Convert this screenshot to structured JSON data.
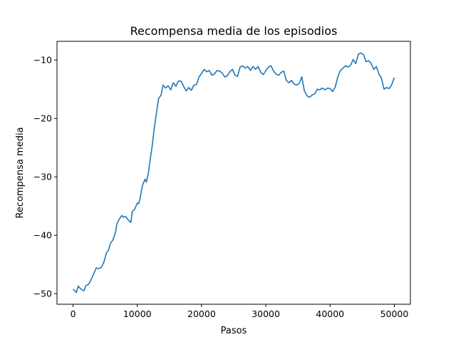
{
  "chart_data": {
    "type": "line",
    "title": "Recompensa media de los episodios",
    "xlabel": "Pasos",
    "ylabel": "Recompensa media",
    "xlim": [
      -2500,
      52500
    ],
    "ylim": [
      -51.8,
      -6.8
    ],
    "xticks": [
      0,
      10000,
      20000,
      30000,
      40000,
      50000
    ],
    "yticks": [
      -50,
      -40,
      -30,
      -20,
      -10
    ],
    "xtick_labels": [
      "0",
      "10000",
      "20000",
      "30000",
      "40000",
      "50000"
    ],
    "ytick_labels": [
      "−50",
      "−40",
      "−30",
      "−20",
      "−10"
    ],
    "grid": false,
    "color": "#1f77b4",
    "series": [
      {
        "x": [
          0,
          500,
          800,
          1200,
          1700,
          2000,
          2400,
          2800,
          3200,
          3600,
          4000,
          4400,
          4800,
          5200,
          5500,
          5800,
          6200,
          6600,
          6800,
          7200,
          7600,
          7800,
          8200,
          8600,
          9000,
          9200,
          9600,
          10000,
          10200,
          10400,
          10800,
          11200,
          11400,
          11700,
          12000,
          12300,
          12600,
          12900,
          13300,
          13700,
          14000,
          14400,
          14800,
          15200,
          15600,
          16000,
          16400,
          16800,
          17200,
          17600,
          18000,
          18400,
          18800,
          19200,
          19600,
          20000,
          20400,
          20800,
          21200,
          21600,
          22000,
          22400,
          22800,
          23200,
          23600,
          24000,
          24400,
          24800,
          25200,
          25600,
          26000,
          26400,
          26800,
          27200,
          27600,
          28000,
          28400,
          28800,
          29200,
          29600,
          30000,
          30400,
          30800,
          31200,
          31600,
          32000,
          32400,
          32800,
          33200,
          33600,
          34000,
          34400,
          34800,
          35200,
          35600,
          36000,
          36400,
          36800,
          37200,
          37600,
          38000,
          38400,
          38800,
          39200,
          39600,
          40000,
          40400,
          40800,
          41200,
          41600,
          42000,
          42400,
          42800,
          43200,
          43600,
          44000,
          44400,
          44800,
          45200,
          45600,
          46000,
          46400,
          46800,
          47200,
          47600,
          48000,
          48400,
          48800,
          49200,
          49600,
          50000
        ],
        "y": [
          -49.2,
          -49.8,
          -48.7,
          -49.2,
          -49.5,
          -48.6,
          -48.4,
          -47.6,
          -46.6,
          -45.6,
          -45.7,
          -45.5,
          -44.6,
          -43.0,
          -42.6,
          -41.4,
          -40.8,
          -39.5,
          -38.1,
          -37.2,
          -36.6,
          -36.9,
          -36.8,
          -37.4,
          -37.8,
          -36.0,
          -35.5,
          -34.5,
          -34.6,
          -33.8,
          -31.5,
          -30.4,
          -30.9,
          -29.5,
          -27.0,
          -24.8,
          -22.0,
          -19.6,
          -16.6,
          -16.0,
          -14.3,
          -14.8,
          -14.4,
          -15.1,
          -13.9,
          -14.5,
          -13.6,
          -13.6,
          -14.5,
          -15.3,
          -14.7,
          -15.2,
          -14.3,
          -14.2,
          -12.9,
          -12.3,
          -11.6,
          -12.0,
          -11.8,
          -12.6,
          -12.4,
          -11.8,
          -11.9,
          -12.2,
          -12.9,
          -12.7,
          -12.0,
          -11.6,
          -12.6,
          -12.8,
          -11.2,
          -11.0,
          -11.4,
          -11.1,
          -11.8,
          -11.1,
          -11.6,
          -11.1,
          -12.1,
          -12.5,
          -11.8,
          -11.2,
          -11.0,
          -11.9,
          -12.4,
          -12.6,
          -12.1,
          -11.9,
          -13.5,
          -13.9,
          -13.5,
          -14.1,
          -14.3,
          -14.0,
          -12.9,
          -15.3,
          -16.1,
          -16.4,
          -16.0,
          -15.8,
          -15.0,
          -15.1,
          -14.8,
          -15.1,
          -14.8,
          -14.9,
          -15.4,
          -14.6,
          -12.9,
          -11.8,
          -11.4,
          -11.0,
          -11.2,
          -10.9,
          -9.9,
          -10.6,
          -9.0,
          -8.8,
          -9.1,
          -10.3,
          -10.1,
          -10.6,
          -11.6,
          -11.1,
          -12.4,
          -13.1,
          -15.0,
          -14.7,
          -14.9,
          -14.2,
          -13.0
        ]
      }
    ]
  }
}
